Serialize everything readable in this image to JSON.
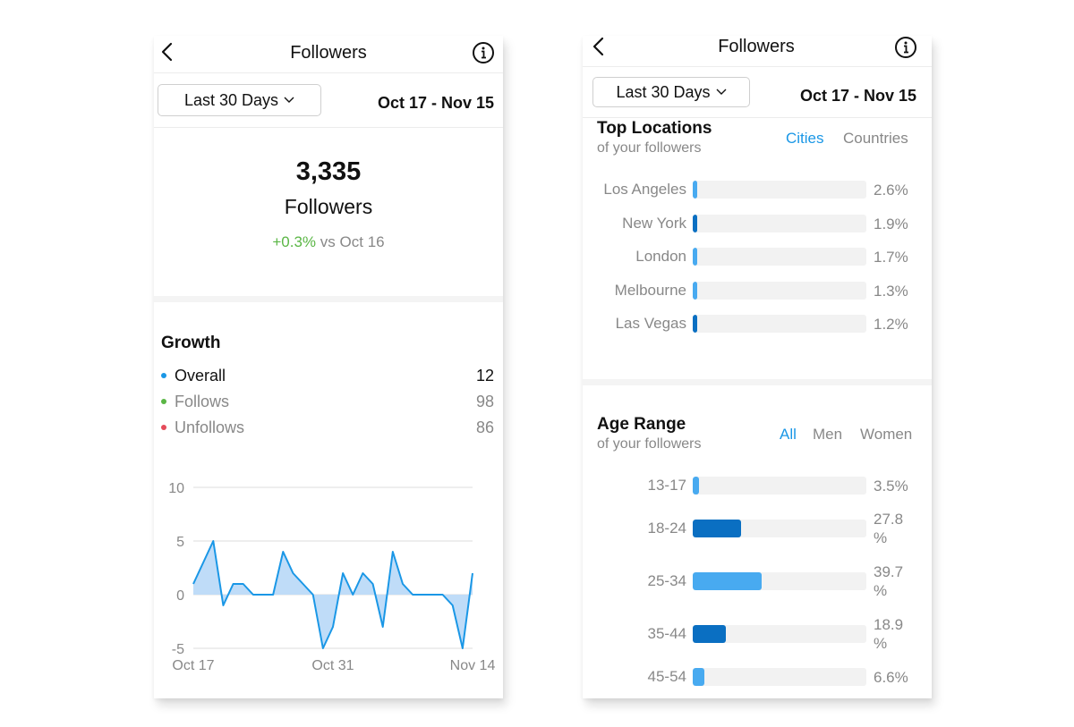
{
  "colors": {
    "accent": "#1a97e6",
    "positive": "#5ab645",
    "follows": "#5ab645",
    "unfollows": "#e54b5a",
    "overall": "#1a97e6",
    "bar_light": "#48aaf0",
    "bar_dark": "#0a6fc2"
  },
  "left": {
    "nav": {
      "title": "Followers",
      "back_icon": "chevron-left-icon",
      "info_icon": "info-icon"
    },
    "range": {
      "label": "Last 30 Days",
      "dates": "Oct 17 - Nov 15"
    },
    "summary": {
      "count": "3,335",
      "label": "Followers",
      "delta": "+0.3%",
      "compare": "vs Oct 16"
    },
    "growth": {
      "title": "Growth",
      "legend": [
        {
          "label": "Overall",
          "value": "12",
          "color": "#1a97e6"
        },
        {
          "label": "Follows",
          "value": "98",
          "color": "#5ab645"
        },
        {
          "label": "Unfollows",
          "value": "86",
          "color": "#e54b5a"
        }
      ]
    }
  },
  "chart_data": {
    "type": "area",
    "title": "",
    "xlabel": "",
    "ylabel": "",
    "ylim": [
      -5,
      10
    ],
    "yticks": [
      "10",
      "5",
      "0",
      "-5"
    ],
    "xticks": [
      "Oct 17",
      "Oct 31",
      "Nov 14"
    ],
    "grid": true,
    "series": [
      {
        "values": [
          1,
          3,
          5,
          -1,
          1,
          1,
          0,
          0,
          0,
          4,
          2,
          1,
          0,
          -5,
          -3,
          2,
          0,
          2,
          1,
          -3,
          4,
          1,
          0,
          0,
          0,
          0,
          -1,
          -5,
          2
        ]
      }
    ]
  },
  "right": {
    "nav": {
      "title": "Followers",
      "back_icon": "chevron-left-icon",
      "info_icon": "info-icon"
    },
    "range": {
      "label": "Last 30 Days",
      "dates": "Oct 17 - Nov 15"
    },
    "locations": {
      "title": "Top Locations",
      "subtitle": "of your followers",
      "tabs": [
        "Cities",
        "Countries"
      ],
      "rows": [
        {
          "label": "Los Angeles",
          "pct_text": "2.6%",
          "value": 2.6,
          "shade": "light"
        },
        {
          "label": "New York",
          "pct_text": "1.9%",
          "value": 1.9,
          "shade": "dark"
        },
        {
          "label": "London",
          "pct_text": "1.7%",
          "value": 1.7,
          "shade": "light"
        },
        {
          "label": "Melbourne",
          "pct_text": "1.3%",
          "value": 1.3,
          "shade": "light"
        },
        {
          "label": "Las Vegas",
          "pct_text": "1.2%",
          "value": 1.2,
          "shade": "dark"
        }
      ]
    },
    "age": {
      "title": "Age Range",
      "subtitle": "of your followers",
      "tabs": [
        "All",
        "Men",
        "Women"
      ],
      "rows": [
        {
          "label": "13-17",
          "pct_text": "3.5%",
          "value": 3.5,
          "shade": "light"
        },
        {
          "label": "18-24",
          "pct_text": "27.8 %",
          "value": 27.8,
          "shade": "dark"
        },
        {
          "label": "25-34",
          "pct_text": "39.7 %",
          "value": 39.7,
          "shade": "light"
        },
        {
          "label": "35-44",
          "pct_text": "18.9 %",
          "value": 18.9,
          "shade": "dark"
        },
        {
          "label": "45-54",
          "pct_text": "6.6%",
          "value": 6.6,
          "shade": "light"
        }
      ]
    }
  }
}
